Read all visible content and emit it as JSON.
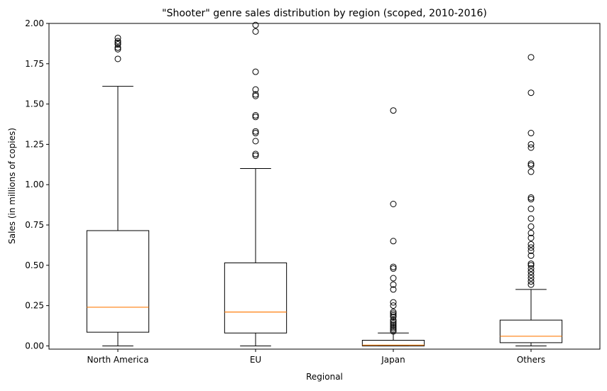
{
  "chart_data": {
    "type": "boxplot",
    "title": "\"Shooter\" genre sales distribution by region (scoped, 2010-2016)",
    "xlabel": "Regional",
    "ylabel": "Sales (in millions of copies)",
    "ylim": [
      -0.02,
      2.0
    ],
    "yticks": [
      0.0,
      0.25,
      0.5,
      0.75,
      1.0,
      1.25,
      1.5,
      1.75,
      2.0
    ],
    "ytick_labels": [
      "0.00",
      "0.25",
      "0.50",
      "0.75",
      "1.00",
      "1.25",
      "1.50",
      "1.75",
      "2.00"
    ],
    "grid": false,
    "categories": [
      "North America",
      "EU",
      "Japan",
      "Others"
    ],
    "box_color": "#000000",
    "median_color": "#ff7f0e",
    "series": [
      {
        "whisker_low": 0.0,
        "q1": 0.085,
        "median": 0.24,
        "q3": 0.715,
        "whisker_high": 1.61,
        "outliers": [
          1.78,
          1.84,
          1.85,
          1.87,
          1.88,
          1.89,
          1.91
        ]
      },
      {
        "whisker_low": 0.0,
        "q1": 0.08,
        "median": 0.21,
        "q3": 0.515,
        "whisker_high": 1.1,
        "outliers": [
          1.18,
          1.19,
          1.27,
          1.32,
          1.33,
          1.42,
          1.43,
          1.55,
          1.56,
          1.59,
          1.7,
          1.95,
          1.99
        ]
      },
      {
        "whisker_low": 0.0,
        "q1": 0.0,
        "median": 0.005,
        "q3": 0.035,
        "whisker_high": 0.08,
        "outliers": [
          0.09,
          0.1,
          0.11,
          0.12,
          0.13,
          0.14,
          0.15,
          0.16,
          0.18,
          0.19,
          0.2,
          0.21,
          0.25,
          0.27,
          0.35,
          0.38,
          0.42,
          0.48,
          0.49,
          0.65,
          0.88,
          1.46
        ]
      },
      {
        "whisker_low": 0.0,
        "q1": 0.02,
        "median": 0.06,
        "q3": 0.16,
        "whisker_high": 0.35,
        "outliers": [
          0.38,
          0.4,
          0.42,
          0.44,
          0.46,
          0.48,
          0.5,
          0.51,
          0.56,
          0.59,
          0.61,
          0.63,
          0.67,
          0.7,
          0.74,
          0.79,
          0.85,
          0.91,
          0.92,
          1.08,
          1.12,
          1.13,
          1.23,
          1.25,
          1.32,
          1.57,
          1.79
        ]
      }
    ]
  }
}
